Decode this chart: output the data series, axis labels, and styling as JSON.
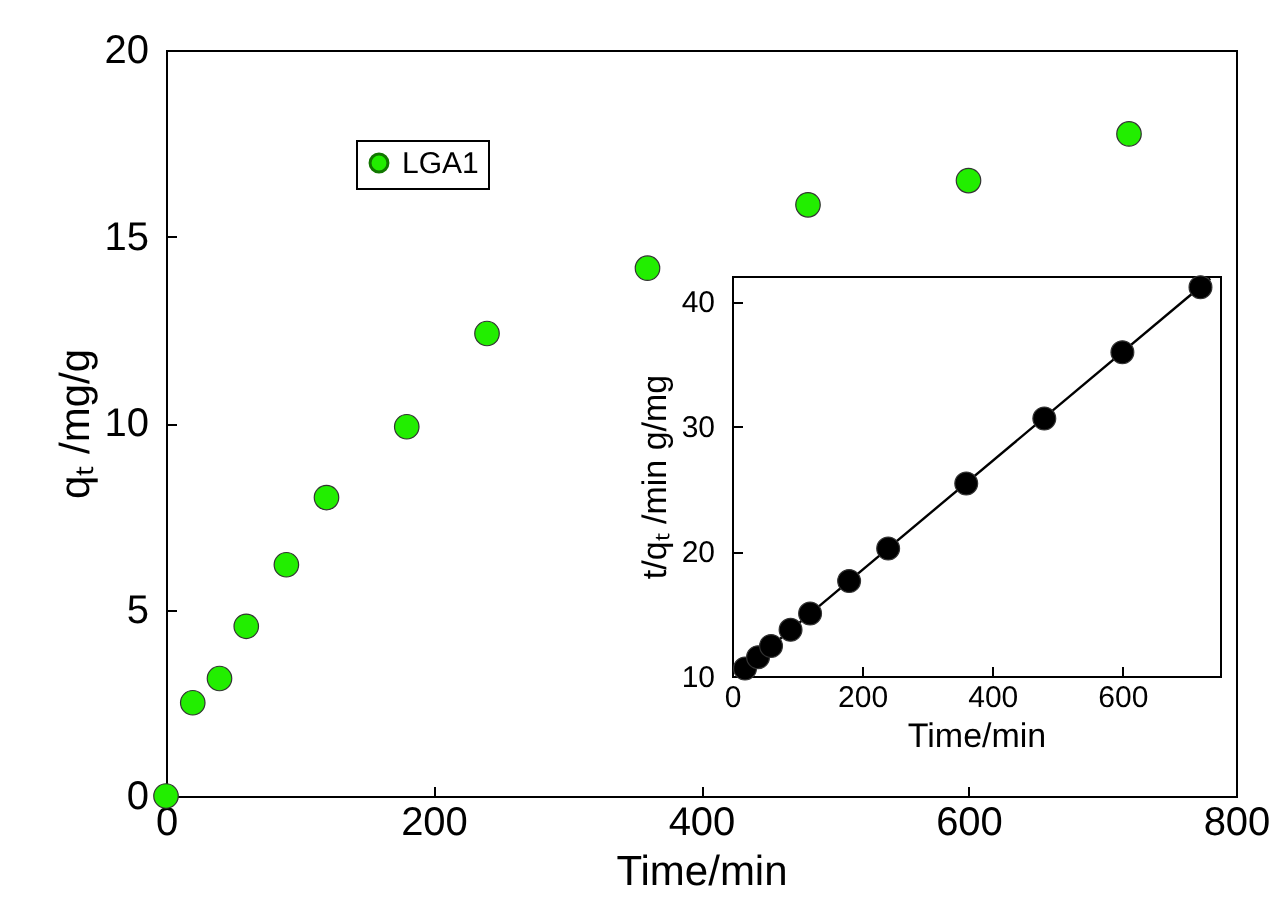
{
  "chart_data": [
    {
      "type": "scatter",
      "xlabel": "Time/min",
      "ylabel": "qₜ /mg/g",
      "xlim": [
        0,
        800
      ],
      "ylim": [
        0,
        20
      ],
      "xticks": [
        0,
        200,
        400,
        600,
        800
      ],
      "yticks": [
        0,
        5,
        10,
        15,
        20
      ],
      "legend": "top left",
      "marker": "circle",
      "x": [
        0,
        20,
        40,
        60,
        90,
        120,
        180,
        240,
        360,
        480,
        600,
        720
      ],
      "series": [
        {
          "name": "LGA1",
          "color": "#22ee00",
          "values": [
            0,
            2.5,
            3.15,
            4.55,
            6.2,
            8.0,
            9.9,
            12.4,
            14.15,
            15.85,
            16.5,
            17.75
          ]
        }
      ]
    },
    {
      "type": "scatter",
      "xlabel": "Time/min",
      "ylabel": "t/qₜ /min g/mg",
      "xlim": [
        0,
        750
      ],
      "ylim": [
        10,
        42
      ],
      "xticks": [
        0,
        200,
        400,
        600
      ],
      "yticks": [
        10,
        20,
        30,
        40
      ],
      "series": [
        {
          "color": "#000000",
          "marker": "circle",
          "x": [
            20,
            40,
            60,
            90,
            120,
            180,
            240,
            360,
            480,
            600,
            720
          ],
          "values": [
            10.6,
            11.5,
            12.4,
            13.7,
            15.0,
            17.6,
            20.2,
            25.4,
            30.6,
            35.9,
            41.1
          ]
        },
        {
          "type": "line",
          "color": "#000000",
          "marker": "none",
          "x": [
            15,
            735
          ],
          "values": [
            10.4,
            41.8
          ]
        }
      ]
    }
  ]
}
